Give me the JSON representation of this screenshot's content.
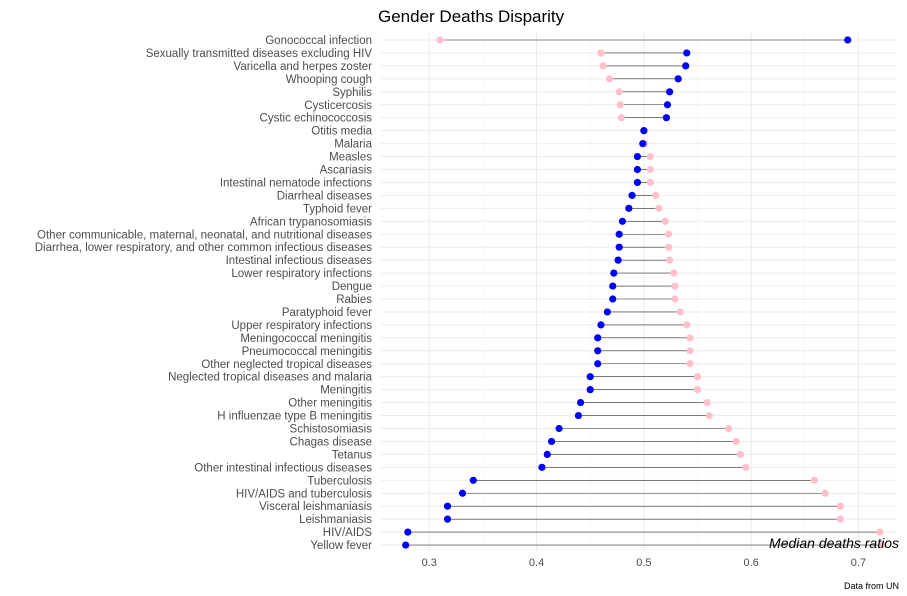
{
  "chart_data": {
    "type": "dumbbell",
    "title": "Gender Deaths Disparity",
    "xlabel": "Median deaths ratios",
    "ylabel": "",
    "caption": "Data from UN",
    "xlim": [
      0.255,
      0.735
    ],
    "xticks": [
      0.3,
      0.4,
      0.5,
      0.6,
      0.7
    ],
    "xtick_labels": [
      "0.3",
      "0.4",
      "0.5",
      "0.6",
      "0.7"
    ],
    "grid": true,
    "colors": {
      "series_a": "#0000ff",
      "series_b": "#ffc0cb"
    },
    "series": [
      {
        "color": "#0000ff",
        "values": [
          0.69,
          0.54,
          0.539,
          0.532,
          0.524,
          0.522,
          0.521,
          0.5,
          0.499,
          0.494,
          0.494,
          0.494,
          0.489,
          0.486,
          0.48,
          0.477,
          0.477,
          0.476,
          0.472,
          0.471,
          0.471,
          0.466,
          0.46,
          0.457,
          0.457,
          0.457,
          0.45,
          0.45,
          0.441,
          0.439,
          0.421,
          0.414,
          0.41,
          0.405,
          0.341,
          0.331,
          0.317,
          0.317,
          0.28,
          0.278
        ]
      },
      {
        "color": "#ffc0cb",
        "values": [
          0.31,
          0.46,
          0.462,
          0.468,
          0.477,
          0.478,
          0.479,
          0.5,
          0.501,
          0.506,
          0.506,
          0.506,
          0.511,
          0.514,
          0.52,
          0.523,
          0.523,
          0.524,
          0.528,
          0.529,
          0.529,
          0.534,
          0.54,
          0.543,
          0.543,
          0.543,
          0.55,
          0.55,
          0.559,
          0.561,
          0.579,
          0.586,
          0.59,
          0.595,
          0.659,
          0.669,
          0.683,
          0.683,
          0.72,
          0.722
        ]
      }
    ],
    "categories": [
      "Gonococcal infection",
      "Sexually transmitted diseases excluding HIV",
      "Varicella and herpes zoster",
      "Whooping cough",
      "Syphilis",
      "Cysticercosis",
      "Cystic echinococcosis",
      "Otitis media",
      "Malaria",
      "Measles",
      "Ascariasis",
      "Intestinal nematode infections",
      "Diarrheal diseases",
      "Typhoid fever",
      "African trypanosomiasis",
      "Other communicable, maternal, neonatal, and nutritional diseases",
      "Diarrhea, lower respiratory, and other common infectious diseases",
      "Intestinal infectious diseases",
      "Lower respiratory infections",
      "Dengue",
      "Rabies",
      "Paratyphoid fever",
      "Upper respiratory infections",
      "Meningococcal meningitis",
      "Pneumococcal meningitis",
      "Other neglected tropical diseases",
      "Neglected tropical diseases and malaria",
      "Meningitis",
      "Other meningitis",
      "H influenzae type B meningitis",
      "Schistosomiasis",
      "Chagas disease",
      "Tetanus",
      "Other intestinal infectious diseases",
      "Tuberculosis",
      "HIV/AIDS and tuberculosis",
      "Visceral leishmaniasis",
      "Leishmaniasis",
      "HIV/AIDS",
      "Yellow fever"
    ]
  }
}
